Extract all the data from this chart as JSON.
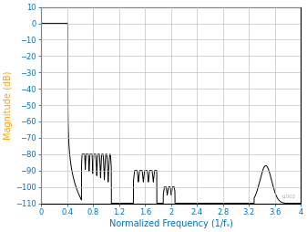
{
  "title": "",
  "xlabel": "Normalized Frequency (1/fₛ)",
  "ylabel": "Magnitude (dB)",
  "xlim": [
    0,
    4
  ],
  "ylim": [
    -110,
    10
  ],
  "xticks": [
    0,
    0.4,
    0.8,
    1.2,
    1.6,
    2.0,
    2.4,
    2.8,
    3.2,
    3.6,
    4.0
  ],
  "yticks": [
    10,
    0,
    -10,
    -20,
    -30,
    -40,
    -50,
    -60,
    -70,
    -80,
    -90,
    -100,
    -110
  ],
  "line_color": "#000000",
  "grid_color": "#c0c0c0",
  "axis_label_color_x": "#0070c0",
  "axis_label_color_y": "#ffa500",
  "tick_label_color": "#0070c0",
  "background_color": "#ffffff",
  "watermark": "LI002",
  "passband_end": 0.41,
  "rolloff_end": 0.63,
  "figsize": [
    3.37,
    2.54
  ],
  "dpi": 100
}
